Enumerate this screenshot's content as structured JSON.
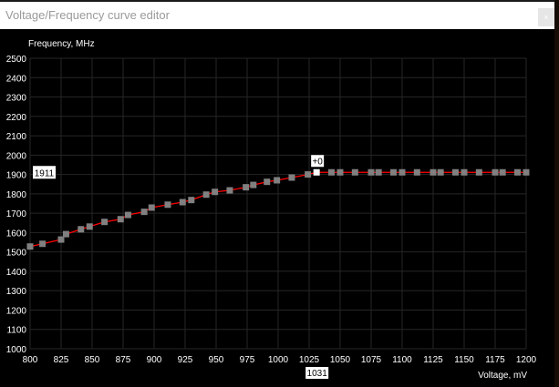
{
  "window": {
    "title": "Voltage/Frequency curve editor",
    "close_icon": "close-icon"
  },
  "chart_data": {
    "type": "line",
    "ylabel": "Frequency, MHz",
    "xlabel": "Voltage, mV",
    "xlim": [
      800,
      1200
    ],
    "ylim": [
      1000,
      2500
    ],
    "x_ticks": [
      "800",
      "825",
      "850",
      "875",
      "900",
      "925",
      "950",
      "975",
      "1000",
      "1025",
      "1050",
      "1075",
      "1100",
      "1125",
      "1150",
      "1175",
      "1200"
    ],
    "y_ticks": [
      "1000",
      "1100",
      "1200",
      "1300",
      "1400",
      "1500",
      "1600",
      "1700",
      "1800",
      "1900",
      "2000",
      "2100",
      "2200",
      "2300",
      "2400",
      "2500"
    ],
    "grid": true,
    "line_color": "#ff0000",
    "point_color": "#808080",
    "selected_point_color": "#ffffff",
    "points": [
      [
        800,
        1528
      ],
      [
        810,
        1542
      ],
      [
        825,
        1564
      ],
      [
        829,
        1592
      ],
      [
        841,
        1617
      ],
      [
        848,
        1631
      ],
      [
        860,
        1655
      ],
      [
        873,
        1669
      ],
      [
        879,
        1691
      ],
      [
        892,
        1707
      ],
      [
        898,
        1729
      ],
      [
        911,
        1744
      ],
      [
        923,
        1757
      ],
      [
        930,
        1768
      ],
      [
        942,
        1796
      ],
      [
        949,
        1810
      ],
      [
        961,
        1818
      ],
      [
        974,
        1834
      ],
      [
        980,
        1846
      ],
      [
        991,
        1862
      ],
      [
        999,
        1870
      ],
      [
        1011,
        1884
      ],
      [
        1024,
        1900
      ],
      [
        1031,
        1911
      ],
      [
        1043,
        1911
      ],
      [
        1050,
        1911
      ],
      [
        1062,
        1911
      ],
      [
        1075,
        1911
      ],
      [
        1081,
        1911
      ],
      [
        1093,
        1911
      ],
      [
        1100,
        1911
      ],
      [
        1112,
        1911
      ],
      [
        1125,
        1911
      ],
      [
        1131,
        1911
      ],
      [
        1143,
        1911
      ],
      [
        1150,
        1911
      ],
      [
        1162,
        1911
      ],
      [
        1175,
        1911
      ],
      [
        1181,
        1911
      ],
      [
        1193,
        1911
      ],
      [
        1200,
        1911
      ]
    ],
    "selected": {
      "voltage_label": "1031",
      "frequency_label": "1911",
      "offset_label": "+0",
      "voltage": 1031,
      "frequency": 1911
    }
  }
}
